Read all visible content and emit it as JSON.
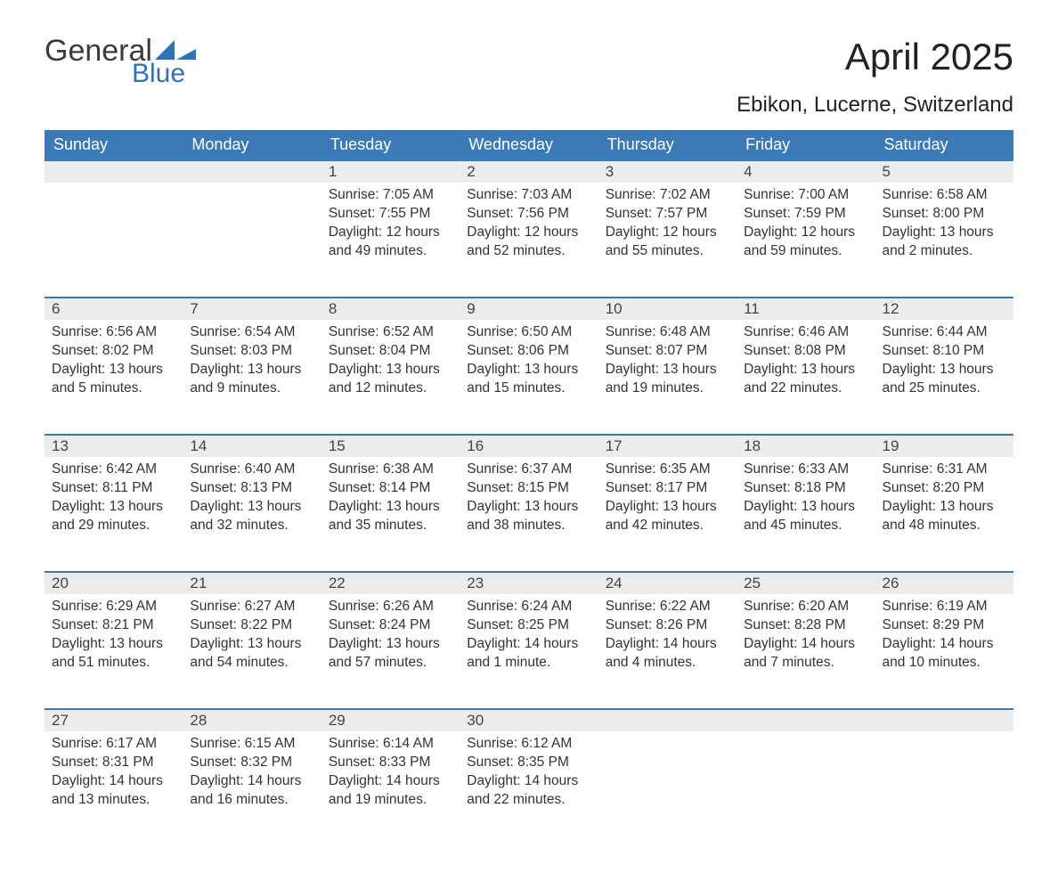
{
  "brand": {
    "general": "General",
    "blue": "Blue",
    "logo_color": "#2f72b8"
  },
  "title": "April 2025",
  "subtitle": "Ebikon, Lucerne, Switzerland",
  "colors": {
    "header_bg": "#3b79b7",
    "header_text": "#ffffff",
    "daynum_bg": "#ececec",
    "daynum_border": "#3b79b7",
    "body_text": "#333333",
    "background": "#ffffff"
  },
  "weekdays": [
    "Sunday",
    "Monday",
    "Tuesday",
    "Wednesday",
    "Thursday",
    "Friday",
    "Saturday"
  ],
  "weeks": [
    [
      null,
      null,
      {
        "n": "1",
        "sunrise": "7:05 AM",
        "sunset": "7:55 PM",
        "daylight": "12 hours and 49 minutes."
      },
      {
        "n": "2",
        "sunrise": "7:03 AM",
        "sunset": "7:56 PM",
        "daylight": "12 hours and 52 minutes."
      },
      {
        "n": "3",
        "sunrise": "7:02 AM",
        "sunset": "7:57 PM",
        "daylight": "12 hours and 55 minutes."
      },
      {
        "n": "4",
        "sunrise": "7:00 AM",
        "sunset": "7:59 PM",
        "daylight": "12 hours and 59 minutes."
      },
      {
        "n": "5",
        "sunrise": "6:58 AM",
        "sunset": "8:00 PM",
        "daylight": "13 hours and 2 minutes."
      }
    ],
    [
      {
        "n": "6",
        "sunrise": "6:56 AM",
        "sunset": "8:02 PM",
        "daylight": "13 hours and 5 minutes."
      },
      {
        "n": "7",
        "sunrise": "6:54 AM",
        "sunset": "8:03 PM",
        "daylight": "13 hours and 9 minutes."
      },
      {
        "n": "8",
        "sunrise": "6:52 AM",
        "sunset": "8:04 PM",
        "daylight": "13 hours and 12 minutes."
      },
      {
        "n": "9",
        "sunrise": "6:50 AM",
        "sunset": "8:06 PM",
        "daylight": "13 hours and 15 minutes."
      },
      {
        "n": "10",
        "sunrise": "6:48 AM",
        "sunset": "8:07 PM",
        "daylight": "13 hours and 19 minutes."
      },
      {
        "n": "11",
        "sunrise": "6:46 AM",
        "sunset": "8:08 PM",
        "daylight": "13 hours and 22 minutes."
      },
      {
        "n": "12",
        "sunrise": "6:44 AM",
        "sunset": "8:10 PM",
        "daylight": "13 hours and 25 minutes."
      }
    ],
    [
      {
        "n": "13",
        "sunrise": "6:42 AM",
        "sunset": "8:11 PM",
        "daylight": "13 hours and 29 minutes."
      },
      {
        "n": "14",
        "sunrise": "6:40 AM",
        "sunset": "8:13 PM",
        "daylight": "13 hours and 32 minutes."
      },
      {
        "n": "15",
        "sunrise": "6:38 AM",
        "sunset": "8:14 PM",
        "daylight": "13 hours and 35 minutes."
      },
      {
        "n": "16",
        "sunrise": "6:37 AM",
        "sunset": "8:15 PM",
        "daylight": "13 hours and 38 minutes."
      },
      {
        "n": "17",
        "sunrise": "6:35 AM",
        "sunset": "8:17 PM",
        "daylight": "13 hours and 42 minutes."
      },
      {
        "n": "18",
        "sunrise": "6:33 AM",
        "sunset": "8:18 PM",
        "daylight": "13 hours and 45 minutes."
      },
      {
        "n": "19",
        "sunrise": "6:31 AM",
        "sunset": "8:20 PM",
        "daylight": "13 hours and 48 minutes."
      }
    ],
    [
      {
        "n": "20",
        "sunrise": "6:29 AM",
        "sunset": "8:21 PM",
        "daylight": "13 hours and 51 minutes."
      },
      {
        "n": "21",
        "sunrise": "6:27 AM",
        "sunset": "8:22 PM",
        "daylight": "13 hours and 54 minutes."
      },
      {
        "n": "22",
        "sunrise": "6:26 AM",
        "sunset": "8:24 PM",
        "daylight": "13 hours and 57 minutes."
      },
      {
        "n": "23",
        "sunrise": "6:24 AM",
        "sunset": "8:25 PM",
        "daylight": "14 hours and 1 minute."
      },
      {
        "n": "24",
        "sunrise": "6:22 AM",
        "sunset": "8:26 PM",
        "daylight": "14 hours and 4 minutes."
      },
      {
        "n": "25",
        "sunrise": "6:20 AM",
        "sunset": "8:28 PM",
        "daylight": "14 hours and 7 minutes."
      },
      {
        "n": "26",
        "sunrise": "6:19 AM",
        "sunset": "8:29 PM",
        "daylight": "14 hours and 10 minutes."
      }
    ],
    [
      {
        "n": "27",
        "sunrise": "6:17 AM",
        "sunset": "8:31 PM",
        "daylight": "14 hours and 13 minutes."
      },
      {
        "n": "28",
        "sunrise": "6:15 AM",
        "sunset": "8:32 PM",
        "daylight": "14 hours and 16 minutes."
      },
      {
        "n": "29",
        "sunrise": "6:14 AM",
        "sunset": "8:33 PM",
        "daylight": "14 hours and 19 minutes."
      },
      {
        "n": "30",
        "sunrise": "6:12 AM",
        "sunset": "8:35 PM",
        "daylight": "14 hours and 22 minutes."
      },
      null,
      null,
      null
    ]
  ],
  "labels": {
    "sunrise": "Sunrise: ",
    "sunset": "Sunset: ",
    "daylight": "Daylight: "
  }
}
